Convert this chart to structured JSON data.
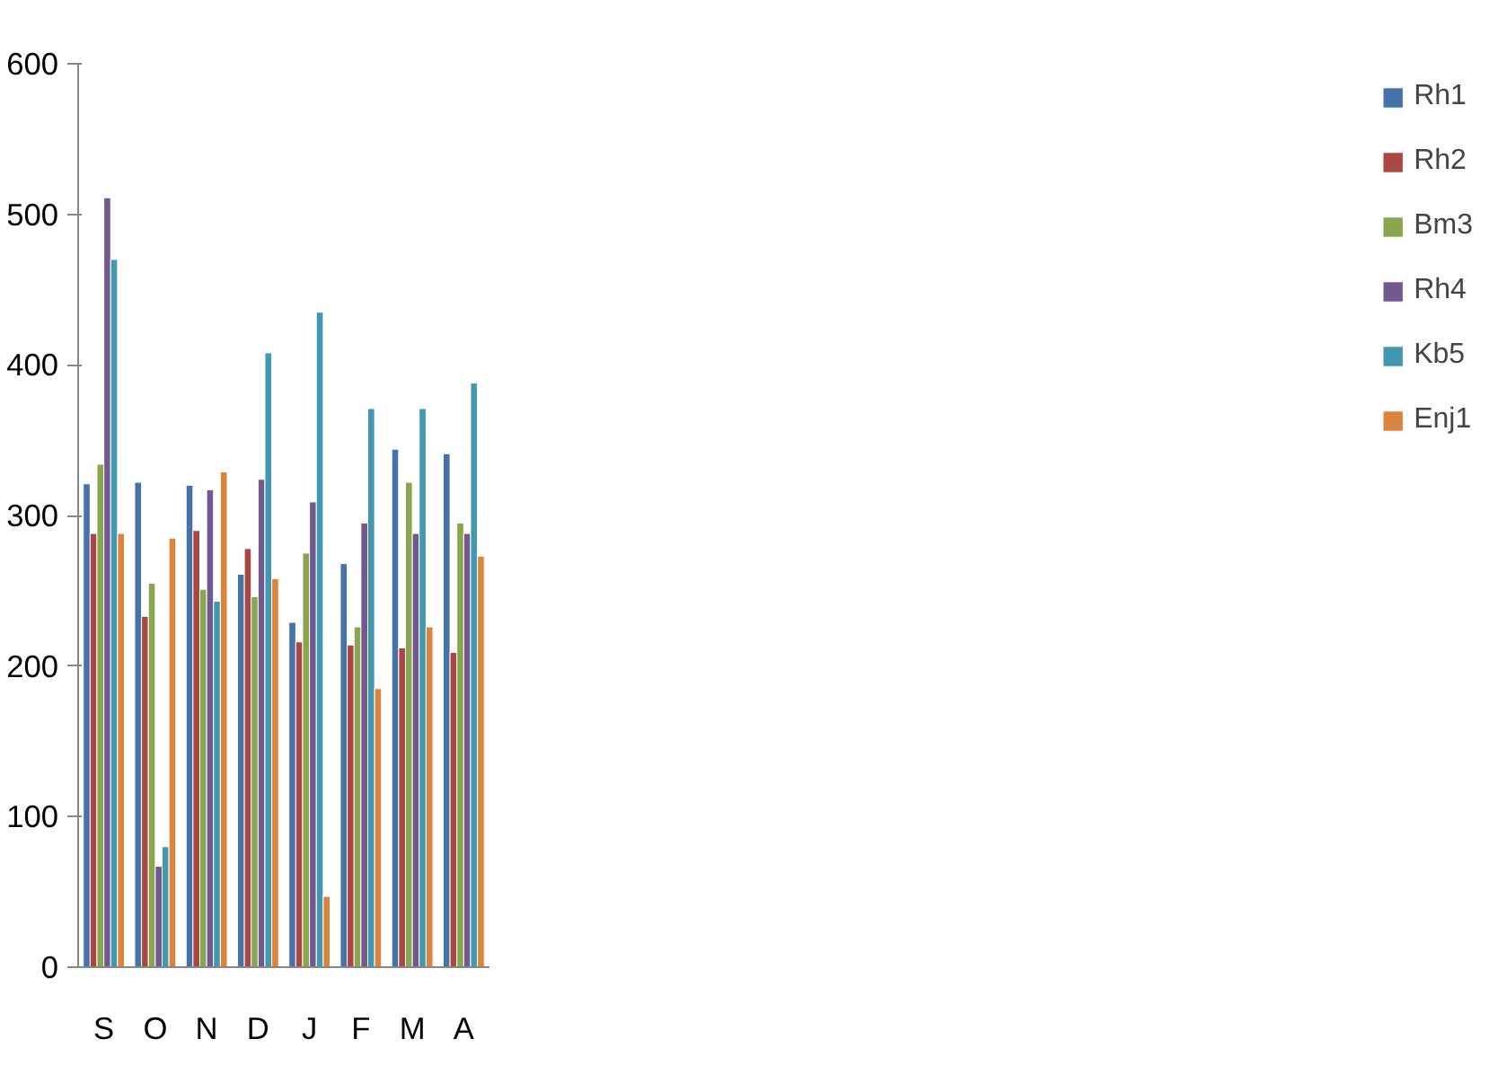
{
  "chart_data": {
    "type": "bar",
    "categories": [
      "S",
      "O",
      "N",
      "D",
      "J",
      "F",
      "M",
      "A"
    ],
    "series": [
      {
        "name": "Rh1",
        "color": "#4572a7",
        "values": [
          321,
          322,
          320,
          261,
          229,
          268,
          344,
          341
        ]
      },
      {
        "name": "Rh2",
        "color": "#aa4643",
        "values": [
          288,
          233,
          290,
          278,
          216,
          214,
          212,
          209
        ]
      },
      {
        "name": "Bm3",
        "color": "#89a54e",
        "values": [
          334,
          255,
          251,
          246,
          275,
          226,
          322,
          295
        ]
      },
      {
        "name": "Rh4",
        "color": "#71588f",
        "values": [
          511,
          67,
          317,
          324,
          309,
          295,
          288,
          288
        ]
      },
      {
        "name": "Kb5",
        "color": "#4198af",
        "values": [
          470,
          80,
          243,
          408,
          435,
          371,
          371,
          388
        ]
      },
      {
        "name": "Enj1",
        "color": "#db843d",
        "values": [
          288,
          285,
          329,
          258,
          47,
          185,
          226,
          273
        ]
      }
    ],
    "ylim": [
      0,
      600
    ],
    "yticks": [
      0,
      100,
      200,
      300,
      400,
      500,
      600
    ],
    "grid": false,
    "legend": "right"
  }
}
